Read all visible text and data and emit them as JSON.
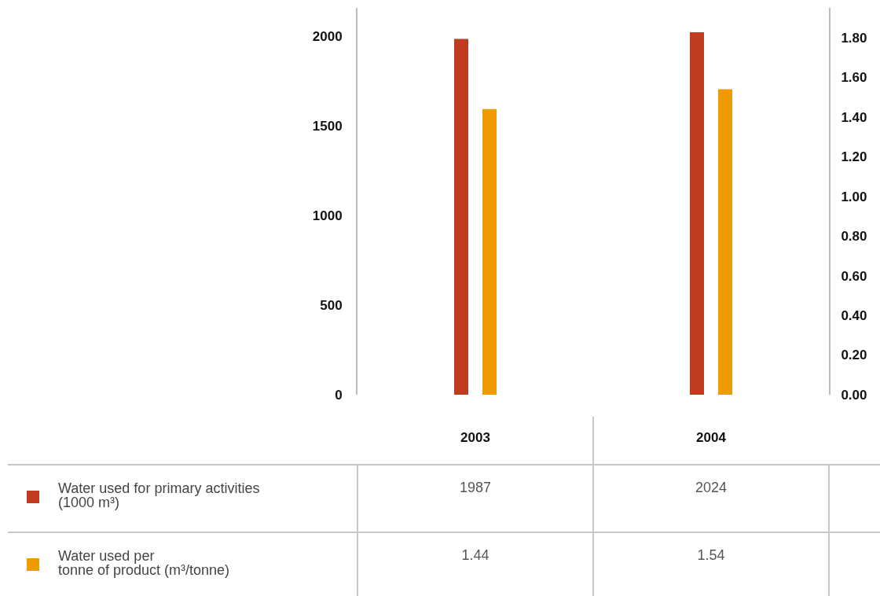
{
  "chart_data": {
    "type": "bar",
    "categories": [
      "2003",
      "2004"
    ],
    "series": [
      {
        "name": "Water used for primary activities\n(1000 m³)",
        "color": "#c03c20",
        "values": [
          1987,
          2024
        ]
      },
      {
        "name": "Water used per\ntonne of product (m³/tonne)",
        "color": "#ee9a00",
        "values": [
          1.44,
          1.54
        ],
        "axis": "y2"
      }
    ],
    "ylim": [
      0,
      2160
    ],
    "yticks": [
      0,
      500,
      1000,
      1500,
      2000
    ],
    "y2lim": [
      0,
      1.95
    ],
    "y2ticks": [
      {
        "value": 0,
        "label": "0.00"
      },
      {
        "value": 0.2,
        "label": "0.20"
      },
      {
        "value": 0.4,
        "label": "0.40"
      },
      {
        "value": 0.6,
        "label": "0.60"
      },
      {
        "value": 0.8,
        "label": "0.80"
      },
      {
        "value": 1,
        "label": "1.00"
      },
      {
        "value": 1.2,
        "label": "1.20"
      },
      {
        "value": 1.4,
        "label": "1.40"
      },
      {
        "value": 1.6,
        "label": "1.60"
      },
      {
        "value": 1.8,
        "label": "1.80"
      }
    ],
    "data_labels": true,
    "legend": "bottom",
    "grid": false
  }
}
